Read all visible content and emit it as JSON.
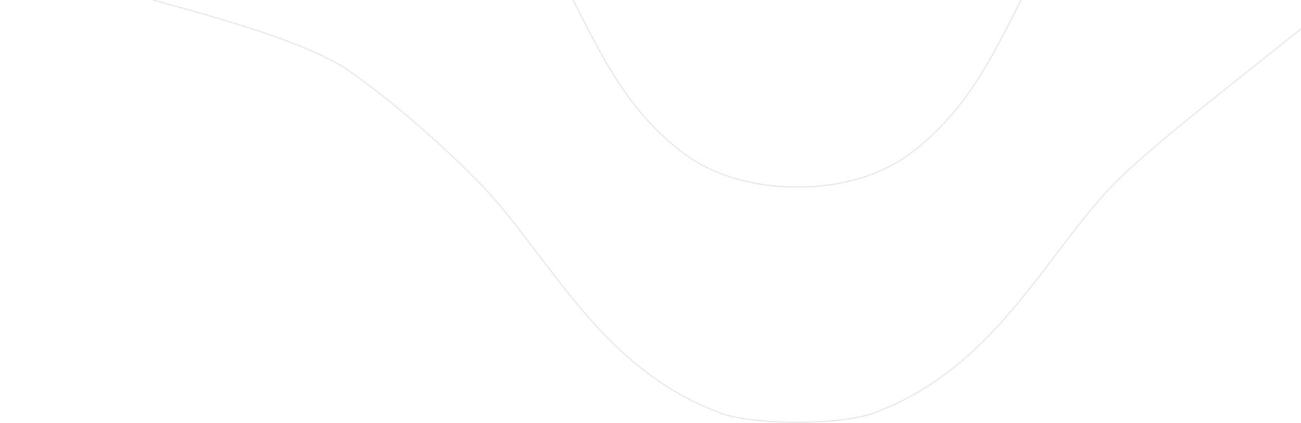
{
  "background": {
    "color": "#ffffff",
    "line_color": "#e6e6e6"
  }
}
